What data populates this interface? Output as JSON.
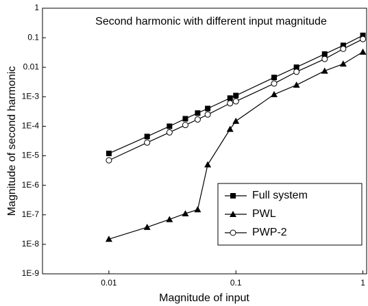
{
  "chart_data": {
    "type": "line",
    "title": "Second harmonic with different input magnitude",
    "x_label": "Magnitude of input",
    "y_label": "Magnitude of second harmonic",
    "x": [
      0.01,
      0.02,
      0.03,
      0.04,
      0.05,
      0.06,
      0.09,
      0.1,
      0.2,
      0.3,
      0.5,
      0.7,
      1.0
    ],
    "series": [
      {
        "name": "Full system",
        "color": "#000000",
        "marker": "square",
        "values": [
          1.2e-05,
          4.5e-05,
          0.0001,
          0.00018,
          0.00028,
          0.0004,
          0.0009,
          0.0011,
          0.0045,
          0.01,
          0.028,
          0.055,
          0.12
        ]
      },
      {
        "name": "PWL",
        "color": "#000000",
        "marker": "triangle",
        "values": [
          1.5e-08,
          3.8e-08,
          7e-08,
          1.1e-07,
          1.5e-07,
          5e-06,
          8e-05,
          0.00015,
          0.0012,
          0.0025,
          0.0075,
          0.013,
          0.033
        ]
      },
      {
        "name": "PWP-2",
        "color": "#000000",
        "marker": "open-circle",
        "values": [
          7e-06,
          2.8e-05,
          6.2e-05,
          0.00011,
          0.00017,
          0.00025,
          0.0006,
          0.0007,
          0.0028,
          0.007,
          0.019,
          0.042,
          0.09
        ]
      }
    ],
    "xscale": "log",
    "yscale": "log",
    "xlim": [
      0.003,
      1.07
    ],
    "ylim": [
      1e-09,
      1
    ],
    "xticks": [
      0.01,
      0.1,
      1
    ],
    "yticks": [
      1,
      0.1,
      0.01,
      {
        "value": 0.001,
        "label": "1E-3"
      },
      {
        "value": 0.0001,
        "label": "1E-4"
      },
      {
        "value": 1e-05,
        "label": "1E-5"
      },
      {
        "value": 1e-06,
        "label": "1E-6"
      },
      {
        "value": 1e-07,
        "label": "1E-7"
      },
      {
        "value": 1e-08,
        "label": "1E-8"
      },
      {
        "value": 1e-09,
        "label": "1E-9"
      }
    ],
    "legend": "lower right"
  }
}
